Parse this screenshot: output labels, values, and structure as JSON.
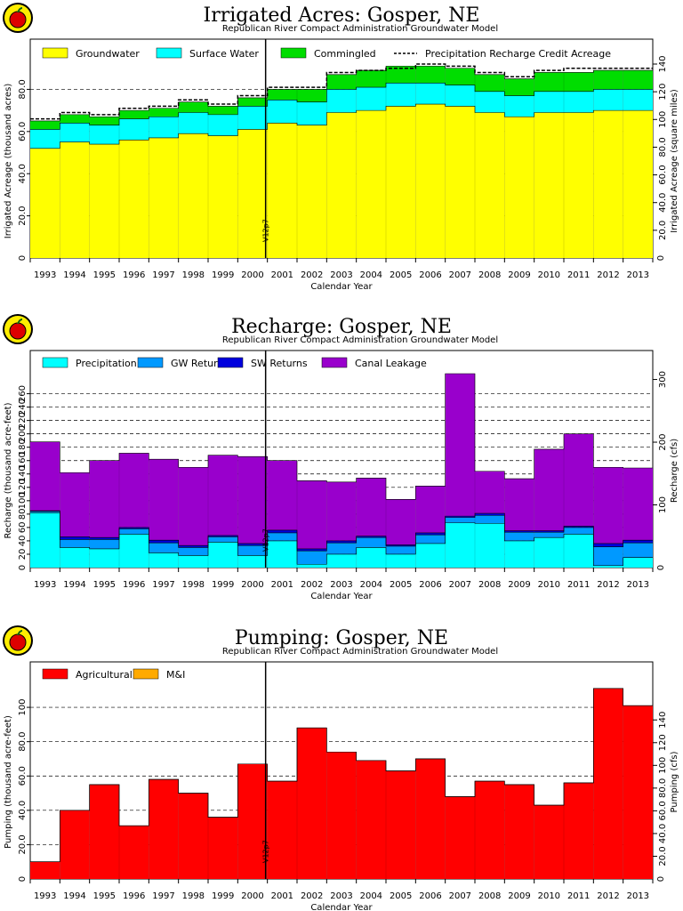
{
  "logo_icon": "apple-logo-icon",
  "chart_data": [
    {
      "type": "area",
      "title": "Irrigated Acres: Gosper, NE",
      "subtitle": "Republican River Compact Administration Groundwater Model",
      "xlabel": "Calendar Year",
      "ylabel": "Irrigated Acreage (thousand acres)",
      "ylabel_right": "Irrigated Acreage (square miles)",
      "ylim": [
        0,
        92
      ],
      "yticks": [
        "20.0",
        "40.0",
        "60.0",
        "80.0"
      ],
      "y_zero_label": "0",
      "yticks_right": [
        "20.0",
        "40.0",
        "60.0",
        "80.0",
        "100",
        "120",
        "140"
      ],
      "categories": [
        "1993",
        "1994",
        "1995",
        "1996",
        "1997",
        "1998",
        "1999",
        "2000",
        "2001",
        "2002",
        "2003",
        "2004",
        "2005",
        "2006",
        "2007",
        "2008",
        "2009",
        "2010",
        "2011",
        "2012",
        "2013"
      ],
      "marker_label": "V12p7",
      "grid": true,
      "legend_placement": "top",
      "series": [
        {
          "name": "Groundwater",
          "color": "#ffff00",
          "values": [
            52,
            55,
            54,
            56,
            57,
            59,
            58,
            61,
            64,
            63,
            69,
            70,
            72,
            73,
            72,
            69,
            67,
            69,
            69,
            70,
            70
          ]
        },
        {
          "name": "Surface Water",
          "color": "#00ffff",
          "values": [
            9,
            9,
            9,
            10,
            10,
            10,
            10,
            11,
            11,
            11,
            11,
            11,
            11,
            10,
            10,
            10,
            10,
            10,
            10,
            10,
            10
          ]
        },
        {
          "name": "Commingled",
          "color": "#00dd00",
          "values": [
            4,
            4,
            4,
            4,
            4,
            5,
            4,
            4,
            5,
            6,
            7,
            8,
            8,
            8,
            8,
            8,
            8,
            9,
            9,
            9,
            9
          ]
        }
      ],
      "line_series": {
        "name": "Precipitation Recharge Credit Acreage",
        "style": "dashed",
        "values": [
          66,
          69,
          68,
          71,
          72,
          75,
          73,
          77,
          81,
          81,
          88,
          89,
          90,
          92,
          91,
          88,
          86,
          89,
          90,
          90,
          90
        ]
      }
    },
    {
      "type": "area",
      "title": "Recharge: Gosper, NE",
      "subtitle": "Republican River Compact Administration Groundwater Model",
      "xlabel": "Calendar Year",
      "ylabel": "Recharge (thousand acre-feet)",
      "ylabel_right": "Recharge (cfs)",
      "ylim": [
        0,
        290
      ],
      "yticks": [
        "20",
        "40",
        "60",
        "80",
        "100",
        "120",
        "140",
        "160",
        "180",
        "200",
        "220",
        "240",
        "260"
      ],
      "y_zero_label": "0",
      "yticks_right": [
        "100",
        "200",
        "300"
      ],
      "categories": [
        "1993",
        "1994",
        "1995",
        "1996",
        "1997",
        "1998",
        "1999",
        "2000",
        "2001",
        "2002",
        "2003",
        "2004",
        "2005",
        "2006",
        "2007",
        "2008",
        "2009",
        "2010",
        "2011",
        "2012",
        "2013"
      ],
      "marker_label": "V12p7",
      "grid": true,
      "legend_placement": "top",
      "series": [
        {
          "name": "Precipitation",
          "color": "#00ffff",
          "values": [
            82,
            30,
            28,
            50,
            22,
            18,
            38,
            18,
            40,
            5,
            20,
            30,
            20,
            36,
            67,
            66,
            40,
            45,
            50,
            3,
            15
          ]
        },
        {
          "name": "GW Returns",
          "color": "#0099ff",
          "values": [
            2,
            12,
            14,
            8,
            15,
            12,
            8,
            15,
            12,
            20,
            17,
            15,
            12,
            13,
            8,
            12,
            13,
            8,
            10,
            28,
            22
          ]
        },
        {
          "name": "SW Returns",
          "color": "#0000dd",
          "values": [
            1,
            4,
            3,
            2,
            4,
            3,
            2,
            3,
            4,
            3,
            3,
            2,
            2,
            3,
            2,
            3,
            2,
            2,
            2,
            5,
            4
          ]
        },
        {
          "name": "Canal Leakage",
          "color": "#9900cc",
          "values": [
            103,
            96,
            115,
            111,
            121,
            117,
            120,
            130,
            104,
            102,
            88,
            87,
            68,
            70,
            213,
            63,
            78,
            122,
            138,
            114,
            108
          ]
        }
      ]
    },
    {
      "type": "bar",
      "title": "Pumping: Gosper, NE",
      "subtitle": "Republican River Compact Administration Groundwater Model",
      "xlabel": "Calendar Year",
      "ylabel": "Pumping (thousand acre-feet)",
      "ylabel_right": "Pumping (cfs)",
      "ylim": [
        0,
        113
      ],
      "yticks": [
        "20.0",
        "40.0",
        "60.0",
        "80.0",
        "100"
      ],
      "y_zero_label": "0",
      "yticks_right": [
        "20.0",
        "40.0",
        "60.0",
        "80.0",
        "100",
        "120",
        "140"
      ],
      "categories": [
        "1993",
        "1994",
        "1995",
        "1996",
        "1997",
        "1998",
        "1999",
        "2000",
        "2001",
        "2002",
        "2003",
        "2004",
        "2005",
        "2006",
        "2007",
        "2008",
        "2009",
        "2010",
        "2011",
        "2012",
        "2013"
      ],
      "marker_label": "V12p7",
      "grid": true,
      "legend_placement": "top",
      "series": [
        {
          "name": "Agricultural",
          "color": "#ff0000",
          "values": [
            10,
            40,
            55,
            31,
            58,
            50,
            36,
            67,
            57,
            88,
            74,
            69,
            63,
            70,
            48,
            57,
            55,
            43,
            56,
            111,
            101
          ]
        },
        {
          "name": "M&I",
          "color": "#ffaa00",
          "values": [
            0,
            0,
            0,
            0,
            0,
            0,
            0,
            0,
            0,
            0,
            0,
            0,
            0,
            0,
            0,
            0,
            0,
            0,
            0,
            0,
            0
          ]
        }
      ]
    }
  ]
}
